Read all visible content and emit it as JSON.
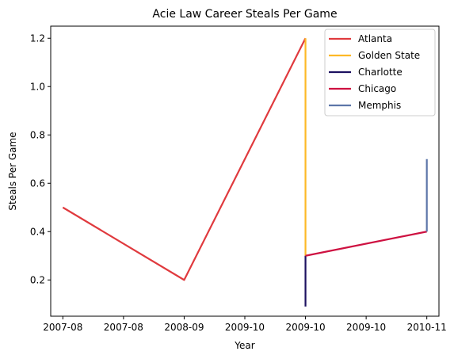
{
  "chart_data": {
    "type": "line",
    "title": "Acie Law Career Steals Per Game",
    "xlabel": "Year",
    "ylabel": "Steals Per Game",
    "x_tick_labels": [
      "2007-08",
      "2007-08",
      "2008-09",
      "2009-10",
      "2009-10",
      "2009-10",
      "2010-11"
    ],
    "y_ticks": [
      0.2,
      0.4,
      0.6,
      0.8,
      1.0,
      1.2
    ],
    "y_tick_labels": [
      "0.2",
      "0.4",
      "0.6",
      "0.8",
      "1.0",
      "1.2"
    ],
    "ylim": [
      0.05,
      1.25
    ],
    "grid": false,
    "legend_position": "top-right",
    "series": [
      {
        "name": "Atlanta",
        "color": "#E03A3E",
        "x": [
          "2007-08",
          "2008-09",
          "2009-10"
        ],
        "y": [
          0.5,
          0.2,
          1.2
        ]
      },
      {
        "name": "Golden State",
        "color": "#FDB927",
        "x": [
          "2009-10",
          "2009-10"
        ],
        "y": [
          1.2,
          0.3
        ]
      },
      {
        "name": "Charlotte",
        "color": "#1D1160",
        "x": [
          "2009-10",
          "2009-10"
        ],
        "y": [
          0.3,
          0.09
        ]
      },
      {
        "name": "Chicago",
        "color": "#CE1141",
        "x": [
          "2009-10",
          "2010-11"
        ],
        "y": [
          0.3,
          0.4
        ]
      },
      {
        "name": "Memphis",
        "color": "#5D76A9",
        "x": [
          "2010-11",
          "2010-11"
        ],
        "y": [
          0.4,
          0.7
        ]
      }
    ]
  }
}
